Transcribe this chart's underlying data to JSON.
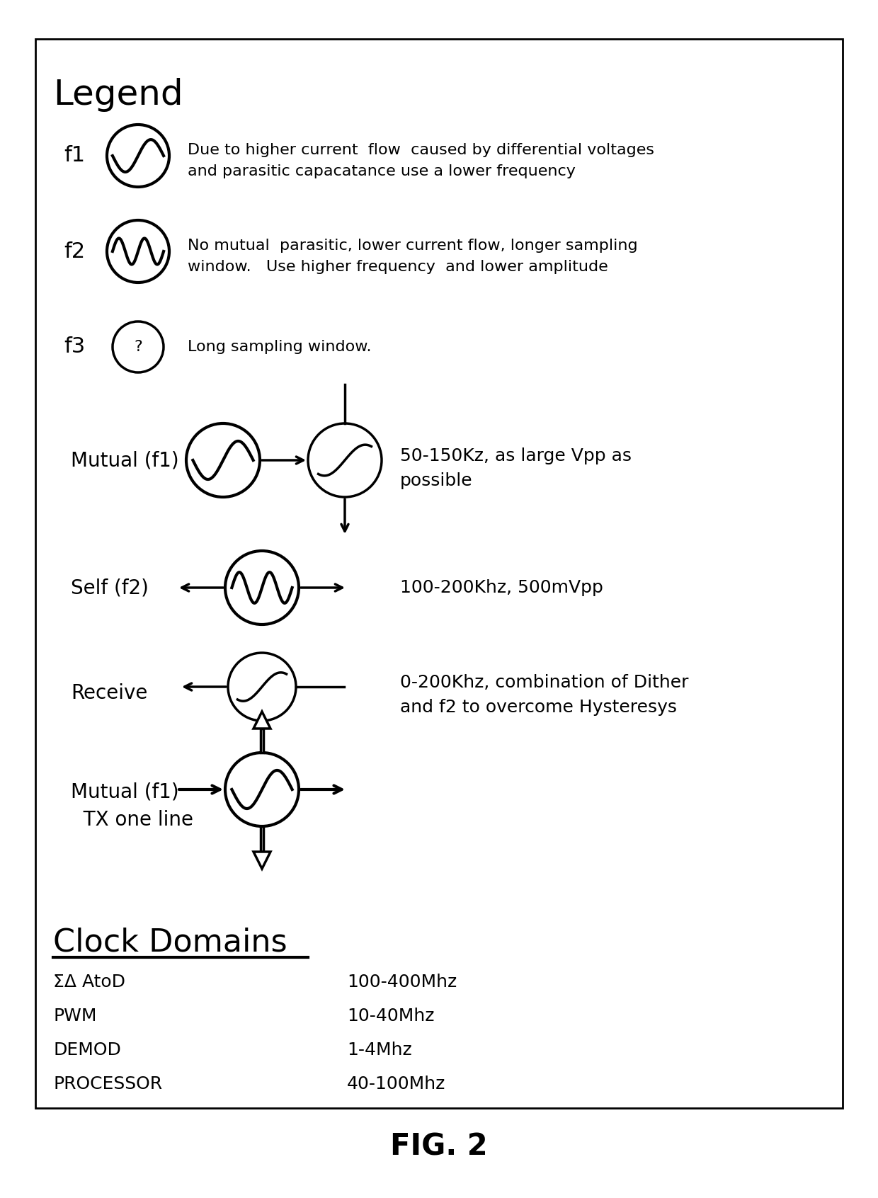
{
  "title": "FIG. 2",
  "background_color": "#ffffff",
  "border_color": "#000000",
  "legend_title": "Legend",
  "f1_label": "f1",
  "f1_desc": "Due to higher current  flow  caused by differential voltages\nand parasitic capacatance use a lower frequency",
  "f2_label": "f2",
  "f2_desc": "No mutual  parasitic, lower current flow, longer sampling\nwindow.   Use higher frequency  and lower amplitude",
  "f3_label": "f3",
  "f3_desc": "Long sampling window.",
  "mutual_f1_label": "Mutual (f1)",
  "mutual_f1_desc": "50-150Kz, as large Vpp as\npossible",
  "self_f2_label": "Self (f2)",
  "self_f2_desc": "100-200Khz, 500mVpp",
  "receive_label": "Receive",
  "receive_desc": "0-200Khz, combination of Dither\nand f2 to overcome Hysteresys",
  "mutual_f1_tx_label": "Mutual (f1)\n  TX one line",
  "clock_domains_title": "Clock Domains",
  "sigma_delta": "ΣΔ AtoD",
  "clock_rows": [
    [
      "PWM",
      "10-40Mhz"
    ],
    [
      "DEMOD",
      "1-4Mhz"
    ],
    [
      "PROCESSOR",
      "40-100Mhz"
    ]
  ],
  "clock_row1_val": "100-400Mhz"
}
